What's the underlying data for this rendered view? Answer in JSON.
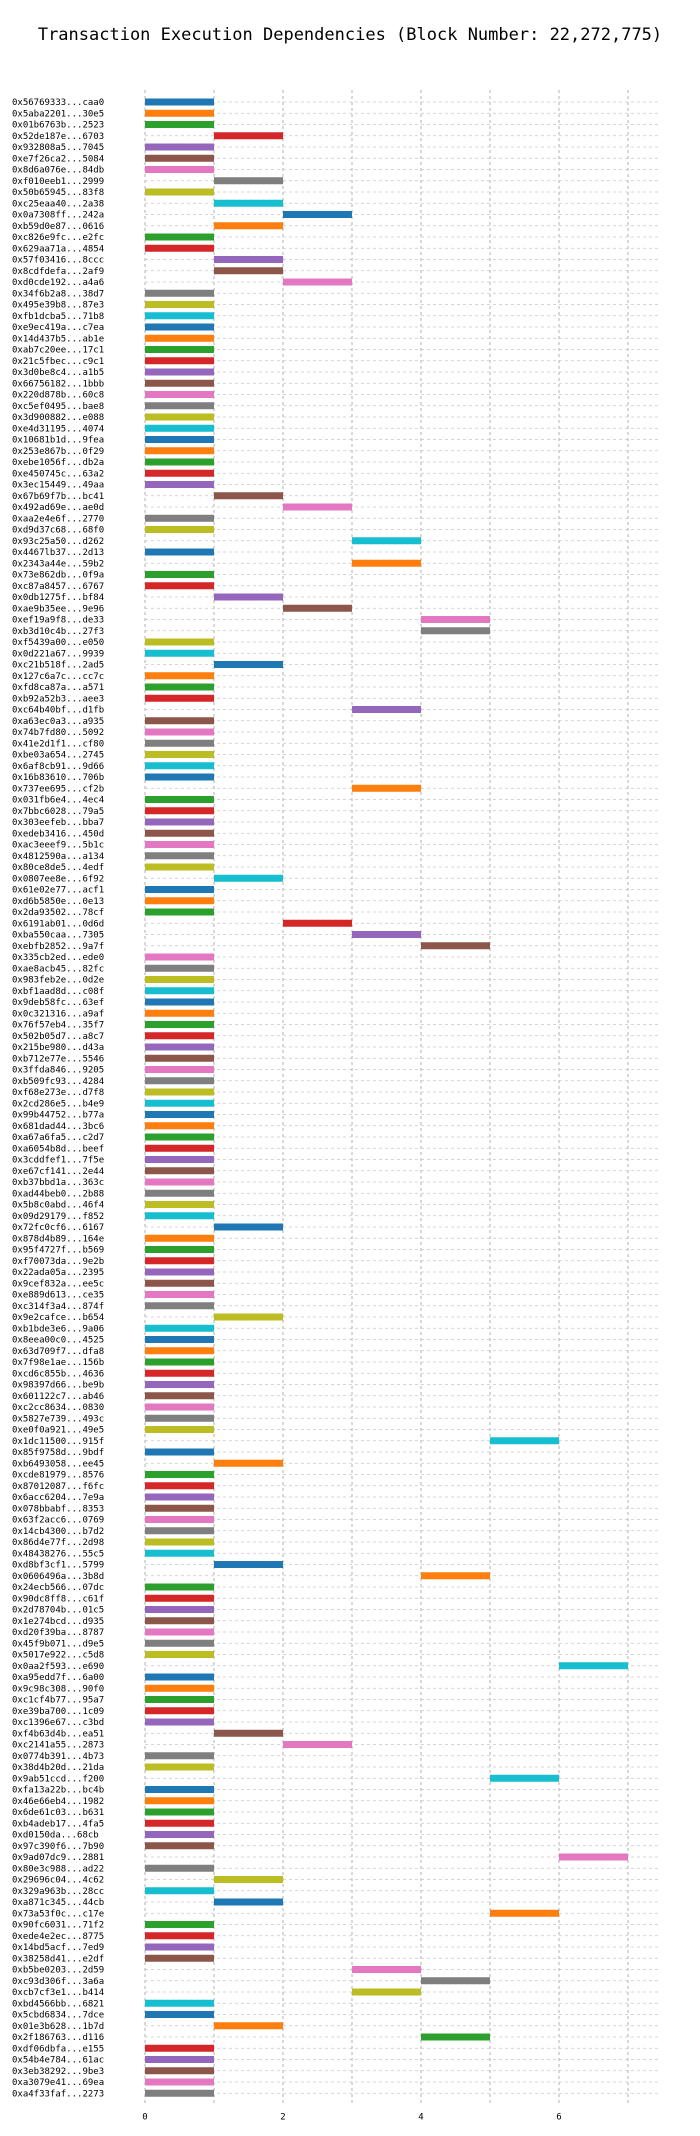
{
  "chart_data": {
    "type": "bar",
    "orientation": "horizontal-gantt",
    "title": "Transaction Execution Dependencies (Block Number: 22,272,775)",
    "xlabel": "",
    "ylabel": "",
    "xlim": [
      0,
      7.5
    ],
    "xticks": [
      "0",
      "2",
      "4",
      "6"
    ],
    "grid": true,
    "colors": [
      "#1f77b4",
      "#ff7f0e",
      "#2ca02c",
      "#d62728",
      "#9467bd",
      "#8c564b",
      "#e377c2",
      "#7f7f7f",
      "#bcbd22",
      "#17becf"
    ],
    "transactions": [
      {
        "hash": "0x56769333...caa0",
        "start": 0
      },
      {
        "hash": "0x5aba2201...30e5",
        "start": 0
      },
      {
        "hash": "0x01b6763b...2523",
        "start": 0
      },
      {
        "hash": "0x52de187e...6703",
        "start": 1
      },
      {
        "hash": "0x932808a5...7045",
        "start": 0
      },
      {
        "hash": "0xe7f26ca2...5084",
        "start": 0
      },
      {
        "hash": "0x8d6a076e...84db",
        "start": 0
      },
      {
        "hash": "0xf010eeb1...2999",
        "start": 1
      },
      {
        "hash": "0x50b65945...83f8",
        "start": 0
      },
      {
        "hash": "0xc25eaa40...2a38",
        "start": 1
      },
      {
        "hash": "0x0a7308ff...242a",
        "start": 2
      },
      {
        "hash": "0xb59d0e87...0616",
        "start": 1
      },
      {
        "hash": "0xc826e9fc...e2fc",
        "start": 0
      },
      {
        "hash": "0x629aa71a...4854",
        "start": 0
      },
      {
        "hash": "0x57f03416...8ccc",
        "start": 1
      },
      {
        "hash": "0x8cdfdefa...2af9",
        "start": 1
      },
      {
        "hash": "0xd0cde192...a4a6",
        "start": 2
      },
      {
        "hash": "0x34f6b2a8...38d7",
        "start": 0
      },
      {
        "hash": "0x495e39b8...87e3",
        "start": 0
      },
      {
        "hash": "0xfb1dcba5...71b8",
        "start": 0
      },
      {
        "hash": "0xe9ec419a...c7ea",
        "start": 0
      },
      {
        "hash": "0x14d437b5...ab1e",
        "start": 0
      },
      {
        "hash": "0xab7c20ee...17c1",
        "start": 0
      },
      {
        "hash": "0x21c5fbec...c9c1",
        "start": 0
      },
      {
        "hash": "0x3d0be8c4...a1b5",
        "start": 0
      },
      {
        "hash": "0x66756182...1bbb",
        "start": 0
      },
      {
        "hash": "0x220d878b...60c8",
        "start": 0
      },
      {
        "hash": "0xc5ef0495...bae8",
        "start": 0
      },
      {
        "hash": "0x3d900882...e088",
        "start": 0
      },
      {
        "hash": "0xe4d31195...4074",
        "start": 0
      },
      {
        "hash": "0x10681b1d...9fea",
        "start": 0
      },
      {
        "hash": "0x253e867b...0f29",
        "start": 0
      },
      {
        "hash": "0xebe1056f...db2a",
        "start": 0
      },
      {
        "hash": "0xe450745c...63a2",
        "start": 0
      },
      {
        "hash": "0x3ec15449...49aa",
        "start": 0
      },
      {
        "hash": "0x67b69f7b...bc41",
        "start": 1
      },
      {
        "hash": "0x492ad69e...ae0d",
        "start": 2
      },
      {
        "hash": "0xaa2e4e6f...2770",
        "start": 0
      },
      {
        "hash": "0xd9d37c68...68f0",
        "start": 0
      },
      {
        "hash": "0x93c25a50...d262",
        "start": 3
      },
      {
        "hash": "0x4467lb37...2d13",
        "start": 0
      },
      {
        "hash": "0x2343a44e...59b2",
        "start": 3
      },
      {
        "hash": "0x73e862db...0f9a",
        "start": 0
      },
      {
        "hash": "0xc87a8457...6767",
        "start": 0
      },
      {
        "hash": "0x0db1275f...bf84",
        "start": 1
      },
      {
        "hash": "0xae9b35ee...9e96",
        "start": 2
      },
      {
        "hash": "0xef19a9f8...de33",
        "start": 4
      },
      {
        "hash": "0xb3d10c4b...27f3",
        "start": 4
      },
      {
        "hash": "0xf5439a00...e050",
        "start": 0
      },
      {
        "hash": "0x0d221a67...9939",
        "start": 0
      },
      {
        "hash": "0xc21b518f...2ad5",
        "start": 1
      },
      {
        "hash": "0x127c6a7c...cc7c",
        "start": 0
      },
      {
        "hash": "0xfd8ca87a...a571",
        "start": 0
      },
      {
        "hash": "0xb92a52b3...aee3",
        "start": 0
      },
      {
        "hash": "0xc64b40bf...d1fb",
        "start": 3
      },
      {
        "hash": "0xa63ec0a3...a935",
        "start": 0
      },
      {
        "hash": "0x74b7fd80...5092",
        "start": 0
      },
      {
        "hash": "0x41e2d1f1...cf80",
        "start": 0
      },
      {
        "hash": "0xbe03a654...2745",
        "start": 0
      },
      {
        "hash": "0x6af8cb91...9d66",
        "start": 0
      },
      {
        "hash": "0x16b83610...706b",
        "start": 0
      },
      {
        "hash": "0x737ee695...cf2b",
        "start": 3
      },
      {
        "hash": "0x031fb6e4...4ec4",
        "start": 0
      },
      {
        "hash": "0x7bbc6028...79a5",
        "start": 0
      },
      {
        "hash": "0x303eefeb...bba7",
        "start": 0
      },
      {
        "hash": "0xedeb3416...450d",
        "start": 0
      },
      {
        "hash": "0xac3eeef9...5b1c",
        "start": 0
      },
      {
        "hash": "0x4812590a...a134",
        "start": 0
      },
      {
        "hash": "0x80ce8de5...4edf",
        "start": 0
      },
      {
        "hash": "0x0807ee8e...6f92",
        "start": 1
      },
      {
        "hash": "0x61e02e77...acf1",
        "start": 0
      },
      {
        "hash": "0xd6b5850e...0e13",
        "start": 0
      },
      {
        "hash": "0x2da93502...78cf",
        "start": 0
      },
      {
        "hash": "0x6191ab01...0d6d",
        "start": 2
      },
      {
        "hash": "0xba550caa...7305",
        "start": 3
      },
      {
        "hash": "0xebfb2852...9a7f",
        "start": 4
      },
      {
        "hash": "0x335cb2ed...ede0",
        "start": 0
      },
      {
        "hash": "0xae8acb45...82fc",
        "start": 0
      },
      {
        "hash": "0x983feb2e...0d2e",
        "start": 0
      },
      {
        "hash": "0xbf1aad8d...c08f",
        "start": 0
      },
      {
        "hash": "0x9deb58fc...63ef",
        "start": 0
      },
      {
        "hash": "0x0c321316...a9af",
        "start": 0
      },
      {
        "hash": "0x76f57eb4...35f7",
        "start": 0
      },
      {
        "hash": "0x502b05d7...a8c7",
        "start": 0
      },
      {
        "hash": "0x215be980...d43a",
        "start": 0
      },
      {
        "hash": "0xb712e77e...5546",
        "start": 0
      },
      {
        "hash": "0x3ffda846...9205",
        "start": 0
      },
      {
        "hash": "0xb509fc93...4284",
        "start": 0
      },
      {
        "hash": "0xf68e273e...d7f8",
        "start": 0
      },
      {
        "hash": "0x2cd286e5...b4e9",
        "start": 0
      },
      {
        "hash": "0x99b44752...b77a",
        "start": 0
      },
      {
        "hash": "0x681dad44...3bc6",
        "start": 0
      },
      {
        "hash": "0xa67a6fa5...c2d7",
        "start": 0
      },
      {
        "hash": "0xa6054b8d...beef",
        "start": 0
      },
      {
        "hash": "0x3cddfef1...7f5e",
        "start": 0
      },
      {
        "hash": "0xe67cf141...2e44",
        "start": 0
      },
      {
        "hash": "0xb37bbd1a...363c",
        "start": 0
      },
      {
        "hash": "0xad44beb0...2b88",
        "start": 0
      },
      {
        "hash": "0x5b8c0abd...46f4",
        "start": 0
      },
      {
        "hash": "0x09d29179...f852",
        "start": 0
      },
      {
        "hash": "0x72fc0cf6...6167",
        "start": 1
      },
      {
        "hash": "0x878d4b89...164e",
        "start": 0
      },
      {
        "hash": "0x95f4727f...b569",
        "start": 0
      },
      {
        "hash": "0xf70073da...9e2b",
        "start": 0
      },
      {
        "hash": "0x22ada05a...2395",
        "start": 0
      },
      {
        "hash": "0x9cef832a...ee5c",
        "start": 0
      },
      {
        "hash": "0xe889d613...ce35",
        "start": 0
      },
      {
        "hash": "0xc314f3a4...874f",
        "start": 0
      },
      {
        "hash": "0x9e2cafce...b654",
        "start": 1
      },
      {
        "hash": "0xb1bde3e6...9a06",
        "start": 0
      },
      {
        "hash": "0x8eea00c0...4525",
        "start": 0
      },
      {
        "hash": "0x63d709f7...dfa8",
        "start": 0
      },
      {
        "hash": "0x7f98e1ae...156b",
        "start": 0
      },
      {
        "hash": "0xcd6c855b...4636",
        "start": 0
      },
      {
        "hash": "0x98397d66...be9b",
        "start": 0
      },
      {
        "hash": "0x601122c7...ab46",
        "start": 0
      },
      {
        "hash": "0xc2cc8634...0830",
        "start": 0
      },
      {
        "hash": "0x5827e739...493c",
        "start": 0
      },
      {
        "hash": "0xe0f0a921...49e5",
        "start": 0
      },
      {
        "hash": "0x1dc11500...915f",
        "start": 5
      },
      {
        "hash": "0x85f9758d...9bdf",
        "start": 0
      },
      {
        "hash": "0xb6493058...ee45",
        "start": 1
      },
      {
        "hash": "0xcde81979...8576",
        "start": 0
      },
      {
        "hash": "0x87012087...f6fc",
        "start": 0
      },
      {
        "hash": "0x6acc6204...7e9a",
        "start": 0
      },
      {
        "hash": "0x078bbabf...8353",
        "start": 0
      },
      {
        "hash": "0x63f2acc6...0769",
        "start": 0
      },
      {
        "hash": "0x14cb4300...b7d2",
        "start": 0
      },
      {
        "hash": "0x86d4e77f...2d98",
        "start": 0
      },
      {
        "hash": "0x48438276...55c5",
        "start": 0
      },
      {
        "hash": "0xd8bf3cf1...5799",
        "start": 1
      },
      {
        "hash": "0x0606496a...3b8d",
        "start": 4
      },
      {
        "hash": "0x24ecb566...07dc",
        "start": 0
      },
      {
        "hash": "0x90dc8ff8...c61f",
        "start": 0
      },
      {
        "hash": "0x2d78704b...01c5",
        "start": 0
      },
      {
        "hash": "0x1e274bcd...d935",
        "start": 0
      },
      {
        "hash": "0xd20f39ba...8787",
        "start": 0
      },
      {
        "hash": "0x45f9b071...d9e5",
        "start": 0
      },
      {
        "hash": "0x5017e922...c5d8",
        "start": 0
      },
      {
        "hash": "0x0aa2f593...e690",
        "start": 6
      },
      {
        "hash": "0xa95edd7f...6a00",
        "start": 0
      },
      {
        "hash": "0x9c98c308...90f0",
        "start": 0
      },
      {
        "hash": "0xc1cf4b77...95a7",
        "start": 0
      },
      {
        "hash": "0xe39ba700...1c09",
        "start": 0
      },
      {
        "hash": "0xc1396e67...c3bd",
        "start": 0
      },
      {
        "hash": "0xf4b63d4b...ea51",
        "start": 1
      },
      {
        "hash": "0xc2141a55...2873",
        "start": 2
      },
      {
        "hash": "0x0774b391...4b73",
        "start": 0
      },
      {
        "hash": "0x38d4b20d...21da",
        "start": 0
      },
      {
        "hash": "0x9ab51ccd...f200",
        "start": 5
      },
      {
        "hash": "0xfa13a22b...bc4b",
        "start": 0
      },
      {
        "hash": "0x46e66eb4...1982",
        "start": 0
      },
      {
        "hash": "0x6de61c03...b631",
        "start": 0
      },
      {
        "hash": "0xb4adeb17...4fa5",
        "start": 0
      },
      {
        "hash": "0xd0150da...68cb",
        "start": 0
      },
      {
        "hash": "0x97c390f6...7b90",
        "start": 0
      },
      {
        "hash": "0x9ad07dc9...2881",
        "start": 6
      },
      {
        "hash": "0x80e3c988...ad22",
        "start": 0
      },
      {
        "hash": "0x29696c04...4c62",
        "start": 1
      },
      {
        "hash": "0x329a963b...28cc",
        "start": 0
      },
      {
        "hash": "0xa871c345...44cb",
        "start": 1
      },
      {
        "hash": "0x73a53f0c...c17e",
        "start": 5
      },
      {
        "hash": "0x90fc6031...71f2",
        "start": 0
      },
      {
        "hash": "0xede4e2ec...8775",
        "start": 0
      },
      {
        "hash": "0x14bd5acf...7ed9",
        "start": 0
      },
      {
        "hash": "0x38258d41...e2df",
        "start": 0
      },
      {
        "hash": "0xb5be0203...2d59",
        "start": 3
      },
      {
        "hash": "0xc93d306f...3a6a",
        "start": 4
      },
      {
        "hash": "0xcb7cf3e1...b414",
        "start": 3
      },
      {
        "hash": "0xbd4566bb...6821",
        "start": 0
      },
      {
        "hash": "0x5cbd6834...7dce",
        "start": 0
      },
      {
        "hash": "0x01e3b628...1b7d",
        "start": 1
      },
      {
        "hash": "0x2f186763...d116",
        "start": 4
      },
      {
        "hash": "0xdf06dbfa...e155",
        "start": 0
      },
      {
        "hash": "0x54b4e784...61ac",
        "start": 0
      },
      {
        "hash": "0x3eb38292...9be3",
        "start": 0
      },
      {
        "hash": "0xa3079e41...69ea",
        "start": 0
      },
      {
        "hash": "0xa4f33faf...2273",
        "start": 0
      }
    ]
  }
}
